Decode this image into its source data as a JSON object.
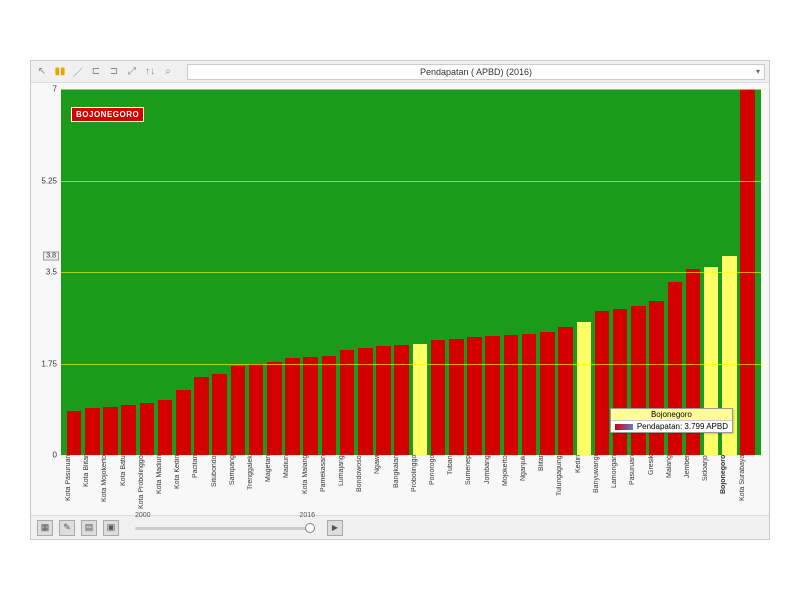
{
  "title": "Pendapatan ( APBD) (2016)",
  "logo_text": "BOJONEGORO",
  "chart": {
    "type": "bar",
    "background_color": "#1a9c1a",
    "grid_color": "rgba(255,255,0,0.6)",
    "ylim": [
      0,
      7
    ],
    "yticks": [
      0,
      1.75,
      3.5,
      5.25,
      7
    ],
    "y_marker": 3.8,
    "bar_default_color": "#d40000",
    "bar_highlight_color": "#ffff66",
    "data": [
      {
        "label": "Kota Pasuruan",
        "value": 0.85
      },
      {
        "label": "Kota Blitar",
        "value": 0.9
      },
      {
        "label": "Kota Mojokerto",
        "value": 0.92
      },
      {
        "label": "Kota Batu",
        "value": 0.95
      },
      {
        "label": "Kota Probolinggo",
        "value": 1.0
      },
      {
        "label": "Kota Madiun",
        "value": 1.05
      },
      {
        "label": "Kota Kediri",
        "value": 1.25
      },
      {
        "label": "Pacitan",
        "value": 1.5
      },
      {
        "label": "Situbondo",
        "value": 1.55
      },
      {
        "label": "Sampang",
        "value": 1.7
      },
      {
        "label": "Trenggalek",
        "value": 1.75
      },
      {
        "label": "Magetan",
        "value": 1.78
      },
      {
        "label": "Madiun",
        "value": 1.85
      },
      {
        "label": "Kota Malang",
        "value": 1.88
      },
      {
        "label": "Pamekasan",
        "value": 1.9
      },
      {
        "label": "Lumajang",
        "value": 2.0
      },
      {
        "label": "Bondowoso",
        "value": 2.05
      },
      {
        "label": "Ngawi",
        "value": 2.08
      },
      {
        "label": "Bangkalan",
        "value": 2.1
      },
      {
        "label": "Probolinggo",
        "value": 2.12,
        "highlight": true
      },
      {
        "label": "Ponorogo",
        "value": 2.2
      },
      {
        "label": "Tuban",
        "value": 2.22
      },
      {
        "label": "Sumenep",
        "value": 2.25
      },
      {
        "label": "Jombang",
        "value": 2.28
      },
      {
        "label": "Mojokerto",
        "value": 2.3
      },
      {
        "label": "Nganjuk",
        "value": 2.32
      },
      {
        "label": "Blitar",
        "value": 2.35
      },
      {
        "label": "Tulungagung",
        "value": 2.45
      },
      {
        "label": "Kediri",
        "value": 2.55,
        "highlight": true
      },
      {
        "label": "Banyuwangi",
        "value": 2.75
      },
      {
        "label": "Lamongan",
        "value": 2.8
      },
      {
        "label": "Pasuruan",
        "value": 2.85
      },
      {
        "label": "Gresik",
        "value": 2.95
      },
      {
        "label": "Malang",
        "value": 3.3
      },
      {
        "label": "Jember",
        "value": 3.55
      },
      {
        "label": "Sidoarjo",
        "value": 3.6,
        "highlight": true
      },
      {
        "label": "Bojonegoro",
        "value": 3.8,
        "highlight": true,
        "bold": true
      },
      {
        "label": "Kota Surabaya",
        "value": 7.0
      }
    ]
  },
  "tooltip": {
    "title": "Bojonegoro",
    "metric": "Pendapatan: 3.799  APBD"
  },
  "timeline": {
    "start": "2000",
    "end": "2016"
  }
}
